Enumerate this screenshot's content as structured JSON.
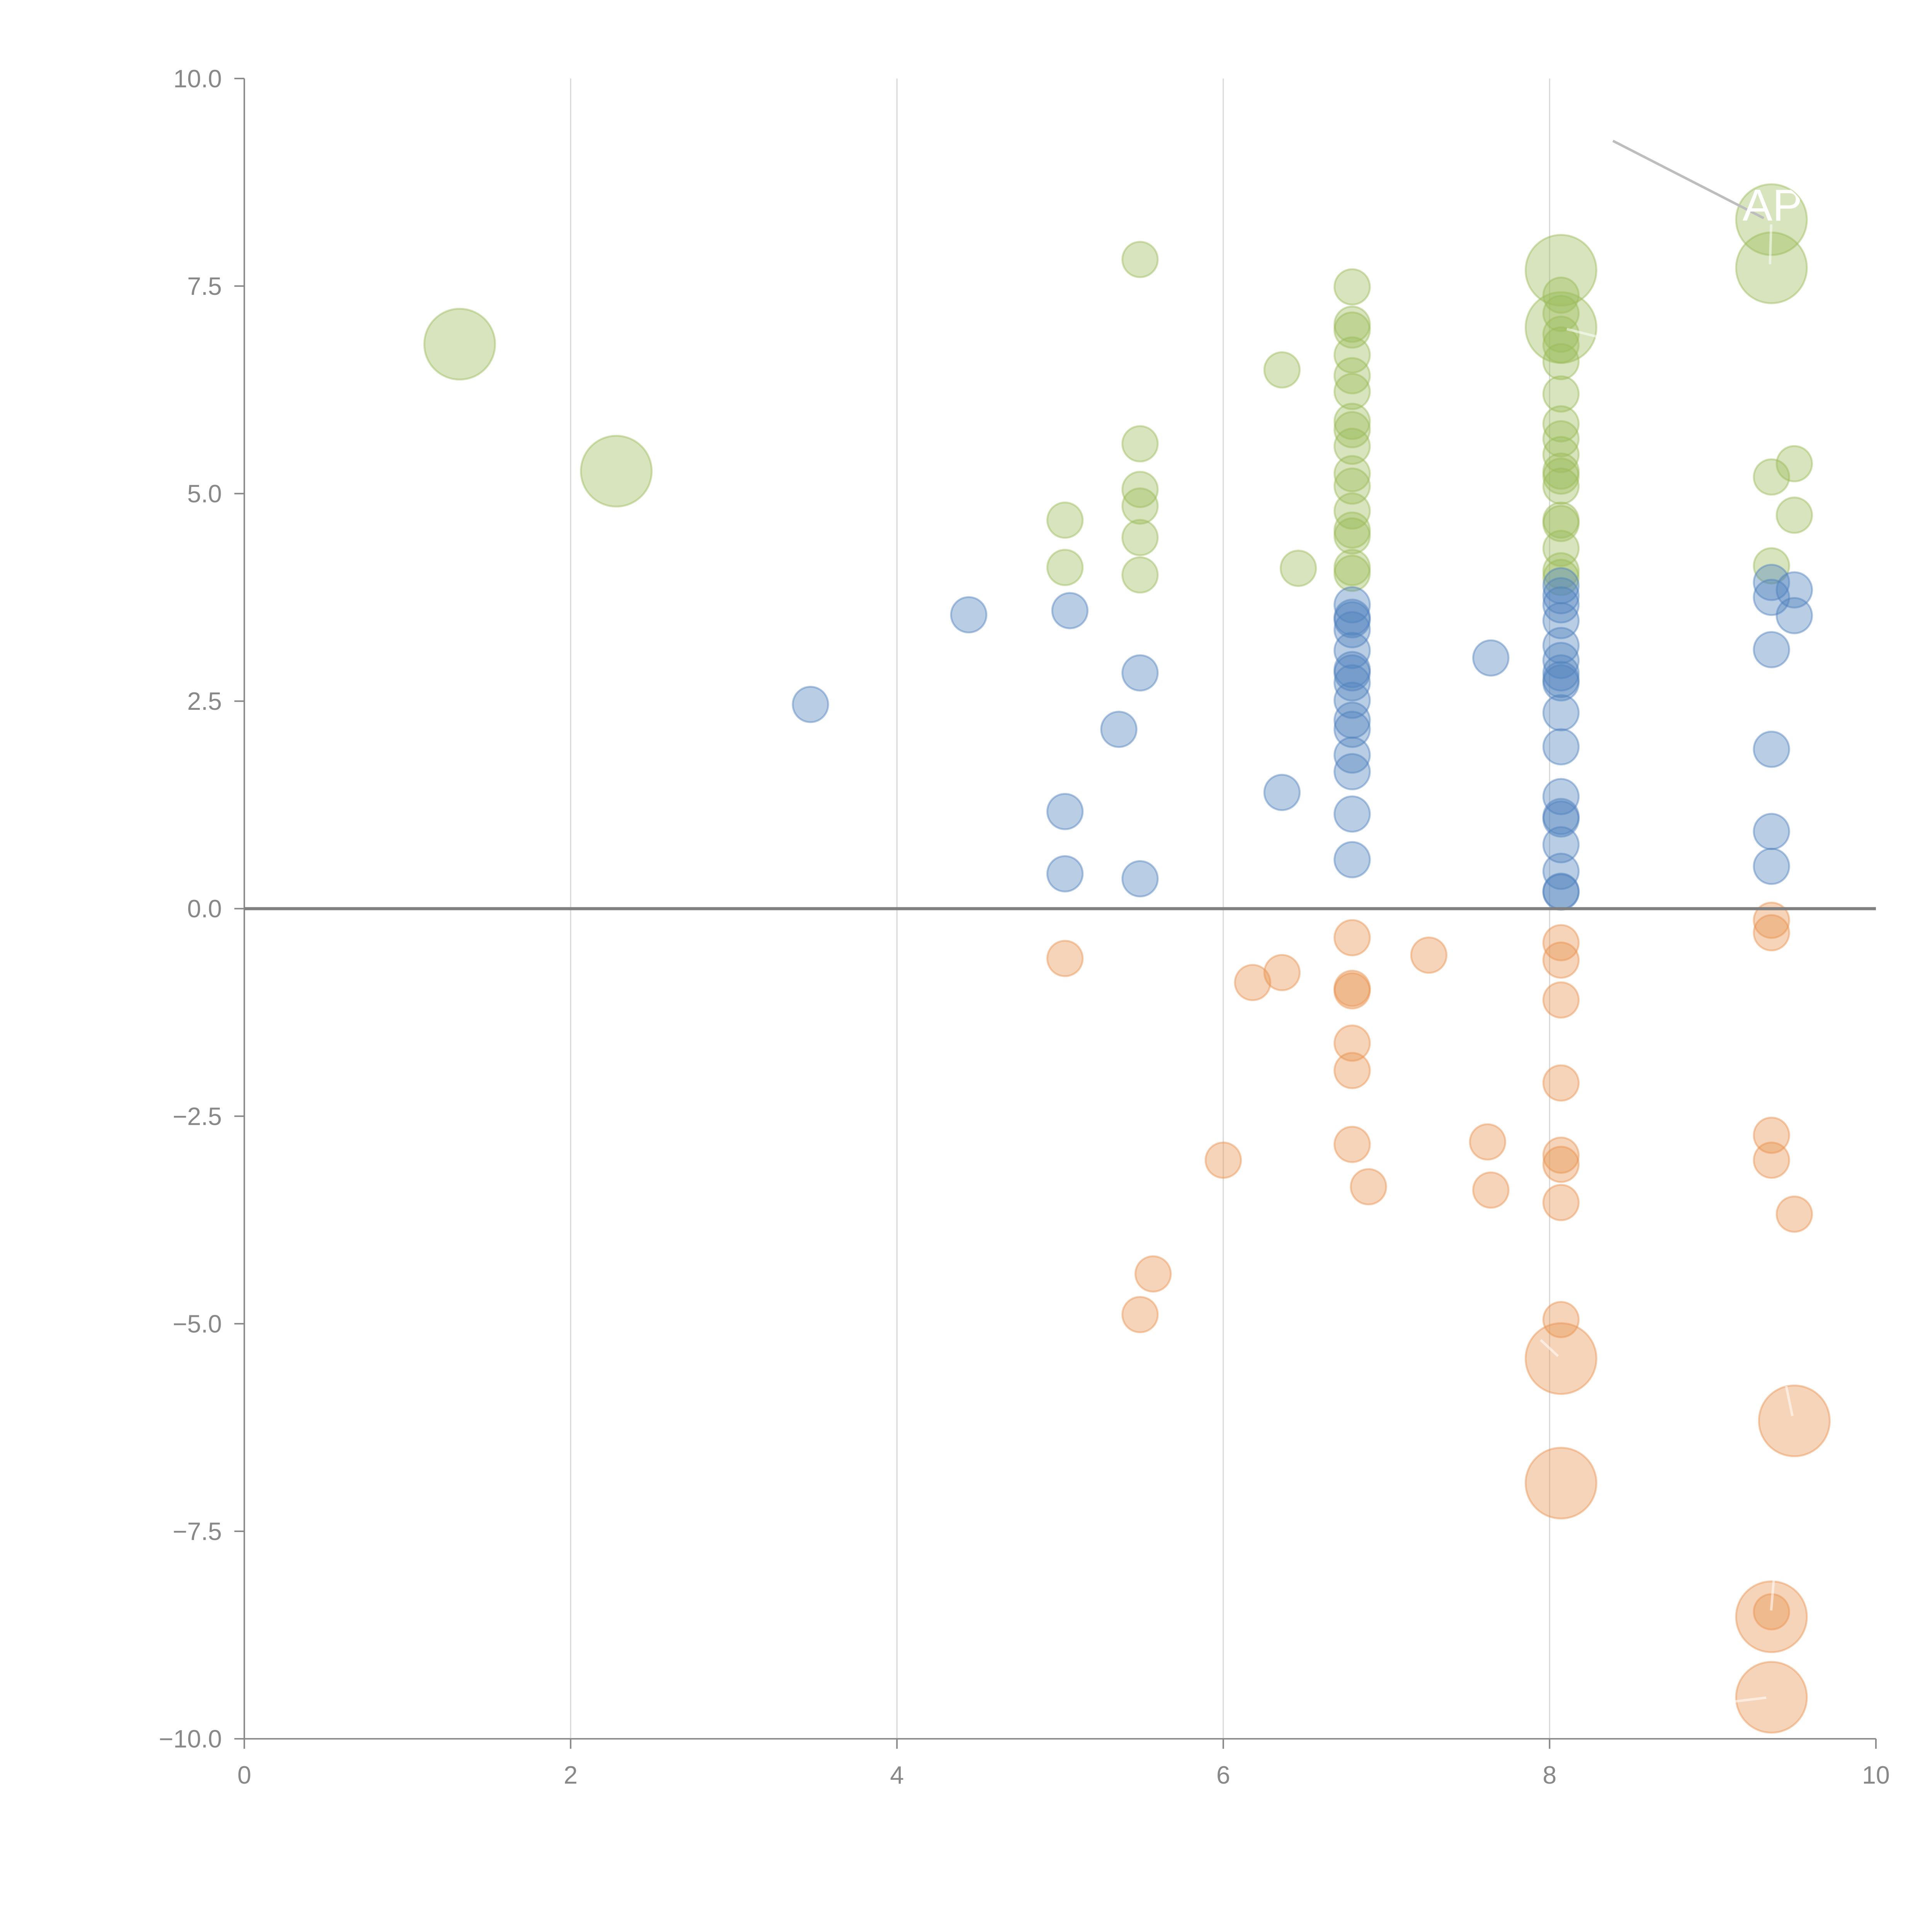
{
  "chart_data": {
    "type": "scatter",
    "subtype": "bubble",
    "title": "",
    "xlabel": "",
    "ylabel": "",
    "xlim": [
      0,
      10
    ],
    "ylim": [
      -10,
      10
    ],
    "x_ticks": [
      "0",
      "2",
      "4",
      "6",
      "8",
      "10"
    ],
    "x_tick_values": [
      0,
      2,
      4,
      6,
      8,
      10
    ],
    "y_ticks": [
      "10.0",
      "7.5",
      "5.0",
      "2.5",
      "0.0",
      "−2.5",
      "−5.0",
      "−7.5",
      "−10.0"
    ],
    "y_tick_values": [
      10,
      7.5,
      5,
      2.5,
      0,
      -2.5,
      -5,
      -7.5,
      -10
    ],
    "grid": "vertical",
    "reference_line_y": 0,
    "legend": "none",
    "annotation": {
      "text": "APR",
      "x": 9.36,
      "y": 8.3,
      "color": "#ffffff"
    },
    "series": [
      {
        "name": "green",
        "color": "#9BBB59",
        "points": [
          {
            "x": 1.32,
            "y": 6.8,
            "size": 4
          },
          {
            "x": 2.28,
            "y": 5.27,
            "size": 4
          },
          {
            "x": 5.49,
            "y": 7.82,
            "size": 1
          },
          {
            "x": 5.49,
            "y": 5.6,
            "size": 1
          },
          {
            "x": 5.49,
            "y": 5.05,
            "size": 1
          },
          {
            "x": 5.49,
            "y": 4.85,
            "size": 1
          },
          {
            "x": 5.49,
            "y": 4.47,
            "size": 1
          },
          {
            "x": 5.49,
            "y": 4.02,
            "size": 1
          },
          {
            "x": 5.03,
            "y": 4.68,
            "size": 1
          },
          {
            "x": 5.03,
            "y": 4.11,
            "size": 1
          },
          {
            "x": 6.36,
            "y": 6.49,
            "size": 1
          },
          {
            "x": 6.46,
            "y": 4.1,
            "size": 1
          },
          {
            "x": 6.79,
            "y": 7.49,
            "size": 1
          },
          {
            "x": 6.79,
            "y": 7.04,
            "size": 1
          },
          {
            "x": 6.79,
            "y": 6.97,
            "size": 1
          },
          {
            "x": 6.79,
            "y": 6.67,
            "size": 1
          },
          {
            "x": 6.79,
            "y": 6.42,
            "size": 1
          },
          {
            "x": 6.79,
            "y": 6.23,
            "size": 1
          },
          {
            "x": 6.79,
            "y": 5.87,
            "size": 1
          },
          {
            "x": 6.79,
            "y": 5.77,
            "size": 1
          },
          {
            "x": 6.79,
            "y": 5.57,
            "size": 1
          },
          {
            "x": 6.79,
            "y": 5.24,
            "size": 1
          },
          {
            "x": 6.79,
            "y": 5.09,
            "size": 1
          },
          {
            "x": 6.79,
            "y": 4.79,
            "size": 1
          },
          {
            "x": 6.79,
            "y": 4.56,
            "size": 1
          },
          {
            "x": 6.79,
            "y": 4.49,
            "size": 1
          },
          {
            "x": 6.79,
            "y": 4.11,
            "size": 1
          },
          {
            "x": 6.79,
            "y": 4.04,
            "size": 1
          },
          {
            "x": 8.07,
            "y": 7.69,
            "size": 4
          },
          {
            "x": 8.07,
            "y": 7.0,
            "size": 4
          },
          {
            "x": 8.07,
            "y": 7.39,
            "size": 1
          },
          {
            "x": 8.07,
            "y": 7.17,
            "size": 1
          },
          {
            "x": 8.07,
            "y": 6.92,
            "size": 1
          },
          {
            "x": 8.07,
            "y": 6.79,
            "size": 1
          },
          {
            "x": 8.07,
            "y": 6.59,
            "size": 1
          },
          {
            "x": 8.07,
            "y": 6.2,
            "size": 1
          },
          {
            "x": 8.07,
            "y": 5.84,
            "size": 1
          },
          {
            "x": 8.07,
            "y": 5.66,
            "size": 1
          },
          {
            "x": 8.07,
            "y": 5.47,
            "size": 1
          },
          {
            "x": 8.07,
            "y": 5.27,
            "size": 1
          },
          {
            "x": 8.07,
            "y": 5.21,
            "size": 1
          },
          {
            "x": 8.07,
            "y": 5.09,
            "size": 1
          },
          {
            "x": 8.07,
            "y": 4.68,
            "size": 1
          },
          {
            "x": 8.07,
            "y": 4.64,
            "size": 1
          },
          {
            "x": 8.07,
            "y": 4.34,
            "size": 1
          },
          {
            "x": 8.07,
            "y": 4.07,
            "size": 1
          },
          {
            "x": 8.07,
            "y": 3.99,
            "size": 1
          },
          {
            "x": 9.36,
            "y": 8.3,
            "size": 4
          },
          {
            "x": 9.36,
            "y": 7.72,
            "size": 4
          },
          {
            "x": 9.36,
            "y": 5.2,
            "size": 1
          },
          {
            "x": 9.36,
            "y": 4.13,
            "size": 1
          },
          {
            "x": 9.5,
            "y": 5.36,
            "size": 1
          },
          {
            "x": 9.5,
            "y": 4.74,
            "size": 1
          }
        ]
      },
      {
        "name": "blue",
        "color": "#4F81BD",
        "points": [
          {
            "x": 3.47,
            "y": 2.46,
            "size": 1
          },
          {
            "x": 4.44,
            "y": 3.54,
            "size": 1
          },
          {
            "x": 5.06,
            "y": 3.59,
            "size": 1
          },
          {
            "x": 5.03,
            "y": 1.17,
            "size": 1
          },
          {
            "x": 5.03,
            "y": 0.42,
            "size": 1
          },
          {
            "x": 5.36,
            "y": 2.16,
            "size": 1
          },
          {
            "x": 5.49,
            "y": 2.84,
            "size": 1
          },
          {
            "x": 5.49,
            "y": 0.36,
            "size": 1
          },
          {
            "x": 6.36,
            "y": 1.4,
            "size": 1
          },
          {
            "x": 6.79,
            "y": 3.66,
            "size": 1
          },
          {
            "x": 6.79,
            "y": 3.51,
            "size": 1
          },
          {
            "x": 6.79,
            "y": 3.48,
            "size": 1
          },
          {
            "x": 6.79,
            "y": 3.36,
            "size": 1
          },
          {
            "x": 6.79,
            "y": 3.11,
            "size": 1
          },
          {
            "x": 6.79,
            "y": 2.88,
            "size": 1
          },
          {
            "x": 6.79,
            "y": 2.84,
            "size": 1
          },
          {
            "x": 6.79,
            "y": 2.72,
            "size": 1
          },
          {
            "x": 6.79,
            "y": 2.51,
            "size": 1
          },
          {
            "x": 6.79,
            "y": 2.27,
            "size": 1
          },
          {
            "x": 6.79,
            "y": 2.16,
            "size": 1
          },
          {
            "x": 6.79,
            "y": 1.85,
            "size": 1
          },
          {
            "x": 6.79,
            "y": 1.65,
            "size": 1
          },
          {
            "x": 6.79,
            "y": 1.14,
            "size": 1
          },
          {
            "x": 6.79,
            "y": 0.59,
            "size": 1
          },
          {
            "x": 7.64,
            "y": 3.02,
            "size": 1
          },
          {
            "x": 8.07,
            "y": 3.89,
            "size": 1
          },
          {
            "x": 8.07,
            "y": 3.77,
            "size": 1
          },
          {
            "x": 8.07,
            "y": 3.66,
            "size": 1
          },
          {
            "x": 8.07,
            "y": 3.47,
            "size": 1
          },
          {
            "x": 8.07,
            "y": 3.17,
            "size": 1
          },
          {
            "x": 8.07,
            "y": 2.99,
            "size": 1
          },
          {
            "x": 8.07,
            "y": 2.84,
            "size": 1
          },
          {
            "x": 8.07,
            "y": 2.76,
            "size": 1
          },
          {
            "x": 8.07,
            "y": 2.72,
            "size": 1
          },
          {
            "x": 8.07,
            "y": 2.36,
            "size": 1
          },
          {
            "x": 8.07,
            "y": 1.95,
            "size": 1
          },
          {
            "x": 8.07,
            "y": 1.35,
            "size": 1
          },
          {
            "x": 8.07,
            "y": 1.11,
            "size": 1
          },
          {
            "x": 8.07,
            "y": 1.08,
            "size": 1
          },
          {
            "x": 8.07,
            "y": 0.77,
            "size": 1
          },
          {
            "x": 8.07,
            "y": 0.45,
            "size": 1
          },
          {
            "x": 8.07,
            "y": 0.21,
            "size": 1
          },
          {
            "x": 8.07,
            "y": 0.2,
            "size": 1
          },
          {
            "x": 9.36,
            "y": 3.93,
            "size": 1
          },
          {
            "x": 9.36,
            "y": 3.75,
            "size": 1
          },
          {
            "x": 9.36,
            "y": 3.12,
            "size": 1
          },
          {
            "x": 9.36,
            "y": 1.92,
            "size": 1
          },
          {
            "x": 9.36,
            "y": 0.93,
            "size": 1
          },
          {
            "x": 9.36,
            "y": 0.51,
            "size": 1
          },
          {
            "x": 9.5,
            "y": 3.84,
            "size": 1
          },
          {
            "x": 9.5,
            "y": 3.53,
            "size": 1
          }
        ]
      },
      {
        "name": "orange",
        "color": "#E8934F",
        "points": [
          {
            "x": 5.03,
            "y": -0.6,
            "size": 1
          },
          {
            "x": 5.49,
            "y": -4.89,
            "size": 1
          },
          {
            "x": 5.57,
            "y": -4.4,
            "size": 1
          },
          {
            "x": 6.0,
            "y": -3.03,
            "size": 1
          },
          {
            "x": 6.18,
            "y": -0.89,
            "size": 1
          },
          {
            "x": 6.36,
            "y": -0.77,
            "size": 1
          },
          {
            "x": 6.79,
            "y": -0.35,
            "size": 1
          },
          {
            "x": 6.79,
            "y": -0.96,
            "size": 1
          },
          {
            "x": 6.79,
            "y": -0.99,
            "size": 1
          },
          {
            "x": 6.79,
            "y": -1.62,
            "size": 1
          },
          {
            "x": 6.79,
            "y": -1.95,
            "size": 1
          },
          {
            "x": 6.79,
            "y": -2.84,
            "size": 1
          },
          {
            "x": 6.89,
            "y": -3.35,
            "size": 1
          },
          {
            "x": 7.26,
            "y": -0.56,
            "size": 1
          },
          {
            "x": 7.62,
            "y": -2.81,
            "size": 1
          },
          {
            "x": 7.64,
            "y": -3.39,
            "size": 1
          },
          {
            "x": 8.07,
            "y": -0.41,
            "size": 1
          },
          {
            "x": 8.07,
            "y": -0.62,
            "size": 1
          },
          {
            "x": 8.07,
            "y": -1.1,
            "size": 1
          },
          {
            "x": 8.07,
            "y": -2.1,
            "size": 1
          },
          {
            "x": 8.07,
            "y": -2.97,
            "size": 1
          },
          {
            "x": 8.07,
            "y": -3.08,
            "size": 1
          },
          {
            "x": 8.07,
            "y": -3.54,
            "size": 1
          },
          {
            "x": 8.07,
            "y": -4.95,
            "size": 1
          },
          {
            "x": 8.07,
            "y": -5.42,
            "size": 4
          },
          {
            "x": 8.07,
            "y": -6.92,
            "size": 4
          },
          {
            "x": 9.36,
            "y": -0.14,
            "size": 1
          },
          {
            "x": 9.36,
            "y": -0.29,
            "size": 1
          },
          {
            "x": 9.36,
            "y": -2.73,
            "size": 1
          },
          {
            "x": 9.36,
            "y": -3.03,
            "size": 1
          },
          {
            "x": 9.36,
            "y": -8.53,
            "size": 4
          },
          {
            "x": 9.36,
            "y": -8.47,
            "size": 1
          },
          {
            "x": 9.36,
            "y": -9.5,
            "size": 4
          },
          {
            "x": 9.5,
            "y": -3.68,
            "size": 1
          },
          {
            "x": 9.5,
            "y": -6.17,
            "size": 4
          }
        ]
      }
    ]
  }
}
